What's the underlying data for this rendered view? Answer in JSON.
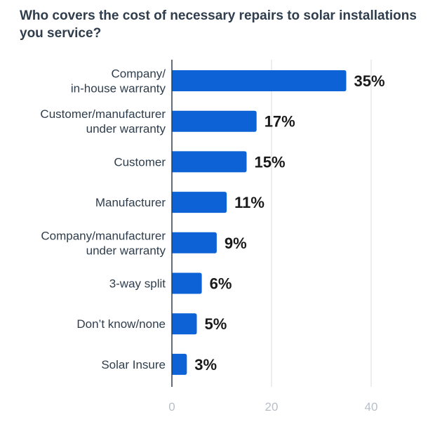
{
  "chart_data": {
    "type": "bar",
    "orientation": "horizontal",
    "title": "Who covers the cost of necessary repairs to solar installations you service?",
    "categories": [
      [
        "Company/",
        "in-house warranty"
      ],
      [
        "Customer/manufacturer",
        "under warranty"
      ],
      [
        "Customer"
      ],
      [
        "Manufacturer"
      ],
      [
        "Company/manufacturer",
        "under warranty"
      ],
      [
        "3-way split"
      ],
      [
        "Don’t know/none"
      ],
      [
        "Solar Insure"
      ]
    ],
    "values": [
      35,
      17,
      15,
      11,
      9,
      6,
      5,
      3
    ],
    "value_labels": [
      "35%",
      "17%",
      "15%",
      "11%",
      "9%",
      "6%",
      "5%",
      "3%"
    ],
    "xlim": [
      0,
      40
    ],
    "xticks": [
      "0",
      "20",
      "40"
    ],
    "grid": true,
    "colors": {
      "bar": "#0d63d6",
      "grid": "#d7dce2",
      "axis": "#2f3d4c"
    }
  }
}
